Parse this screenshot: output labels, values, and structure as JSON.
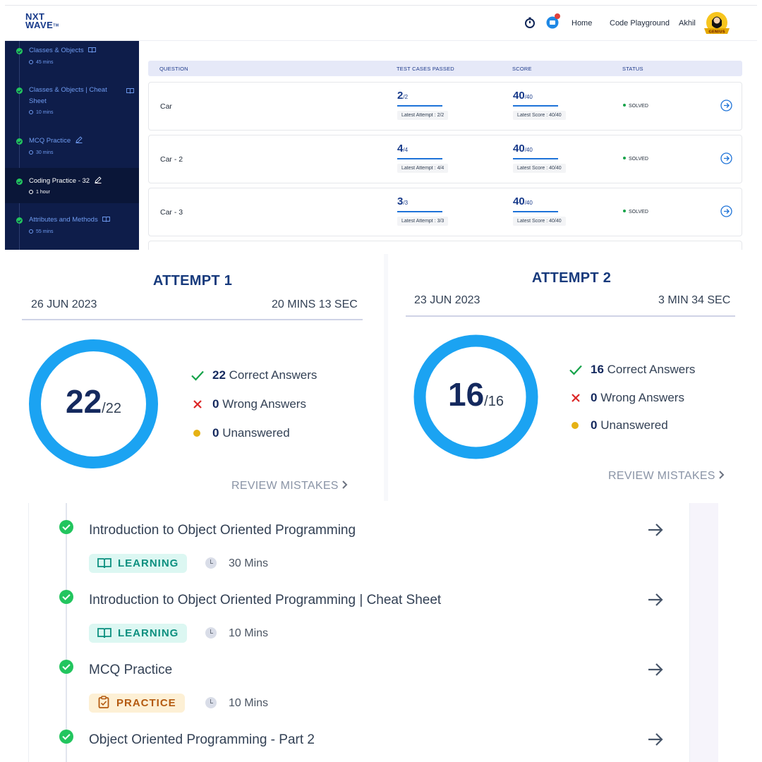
{
  "panel1": {
    "brand": {
      "line1": "NXT",
      "line2": "WAVE",
      "mark": "TM"
    },
    "nav": {
      "home": "Home",
      "code": "Code Playground",
      "user": "Akhil",
      "avatar_badge": "GENIUS"
    },
    "sidebar": [
      {
        "title": "Classes & Objects",
        "meta": "45 mins",
        "icon": "book-icon"
      },
      {
        "title": "Classes & Objects | Cheat Sheet",
        "meta": "10 mins",
        "icon": "book-icon"
      },
      {
        "title": "MCQ Practice",
        "meta": "30 mins",
        "icon": "pencil-icon"
      },
      {
        "title": "Coding Practice - 32",
        "meta": "1 hour",
        "icon": "pencil-icon",
        "active": true
      },
      {
        "title": "Attributes and Methods",
        "meta": "55 mins",
        "icon": "book-icon"
      }
    ],
    "table": {
      "headers": {
        "question": "QUESTION",
        "tests": "TEST CASES PASSED",
        "score": "SCORE",
        "status": "STATUS"
      },
      "rows": [
        {
          "name": "Car",
          "tests": "2",
          "tests_den": "/2",
          "tests_latest": "Latest Attempt : 2/2",
          "score": "40",
          "score_den": "/40",
          "score_latest": "Latest Score : 40/40",
          "status": "SOLVED"
        },
        {
          "name": "Car - 2",
          "tests": "4",
          "tests_den": "/4",
          "tests_latest": "Latest Attempt : 4/4",
          "score": "40",
          "score_den": "/40",
          "score_latest": "Latest Score : 40/40",
          "status": "SOLVED"
        },
        {
          "name": "Car - 3",
          "tests": "3",
          "tests_den": "/3",
          "tests_latest": "Latest Attempt : 3/3",
          "score": "40",
          "score_den": "/40",
          "score_latest": "Latest Score : 40/40",
          "status": "SOLVED"
        }
      ]
    }
  },
  "panel2": {
    "attempts": [
      {
        "title": "ATTEMPT 1",
        "date": "26 JUN 2023",
        "duration": "20 MINS 13 SEC",
        "score": "22",
        "total": "/22",
        "correct_n": "22",
        "correct_label": "Correct Answers",
        "wrong_n": "0",
        "wrong_label": "Wrong Answers",
        "unanswered_n": "0",
        "unanswered_label": "Unanswered",
        "review": "REVIEW MISTAKES"
      },
      {
        "title": "ATTEMPT 2",
        "date": "23 JUN 2023",
        "duration": "3 MIN 34 SEC",
        "score": "16",
        "total": "/16",
        "correct_n": "16",
        "correct_label": "Correct Answers",
        "wrong_n": "0",
        "wrong_label": "Wrong Answers",
        "unanswered_n": "0",
        "unanswered_label": "Unanswered",
        "review": "REVIEW MISTAKES"
      }
    ]
  },
  "panel3": {
    "modules": [
      {
        "title": "Introduction to Object Oriented Programming",
        "badge": "LEARNING",
        "duration": "30 Mins"
      },
      {
        "title": "Introduction to Object Oriented Programming | Cheat Sheet",
        "badge": "LEARNING",
        "duration": "10 Mins"
      },
      {
        "title": "MCQ Practice",
        "badge": "PRACTICE",
        "duration": "10 Mins"
      },
      {
        "title": "Object Oriented Programming - Part 2"
      }
    ]
  }
}
